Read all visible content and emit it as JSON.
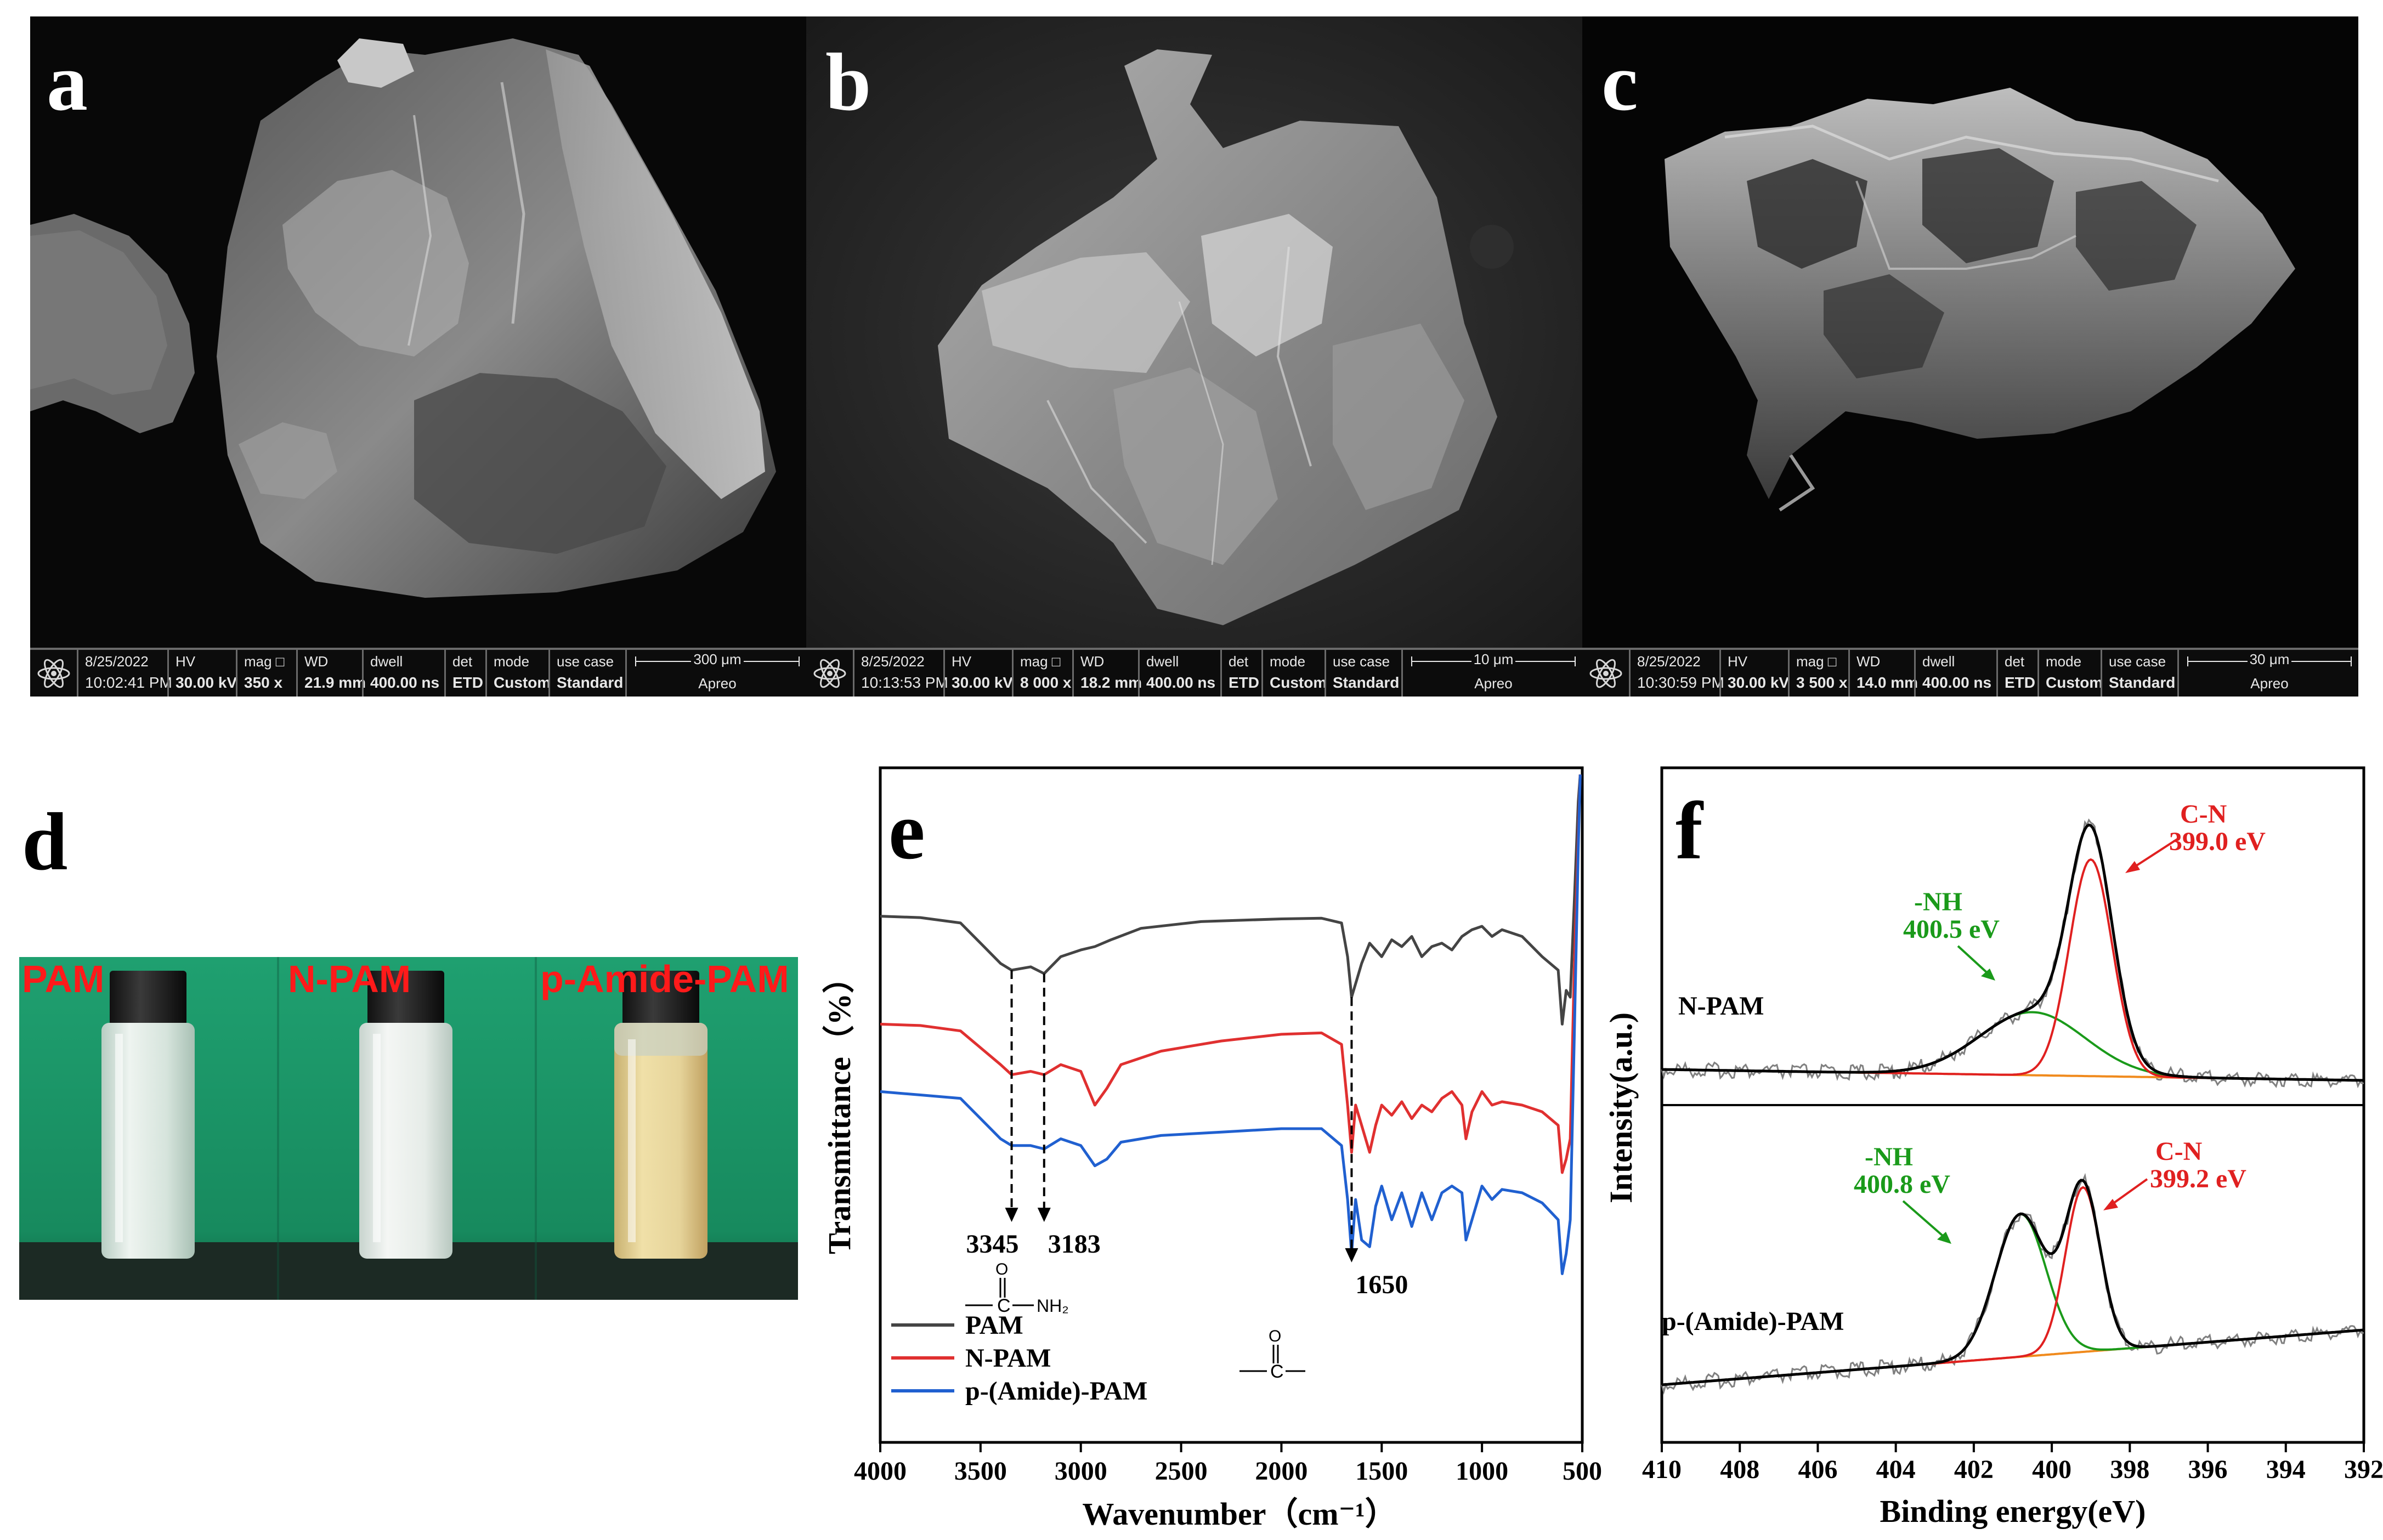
{
  "panels": {
    "a": "a",
    "b": "b",
    "c": "c",
    "d": "d",
    "e": "e",
    "f": "f"
  },
  "sem": [
    {
      "date": "8/25/2022",
      "time": "10:02:41 PM",
      "hv_label": "HV",
      "hv": "30.00 kV",
      "mag_label": "mag □",
      "mag": "350 x",
      "wd_label": "WD",
      "wd": "21.9 mm",
      "dwell_label": "dwell",
      "dwell": "400.00 ns",
      "det_label": "det",
      "det": "ETD",
      "mode_label": "mode",
      "mode": "Custom",
      "usecase_label": "use case",
      "usecase": "Standard",
      "scale": "300 μm",
      "brand": "Apreo"
    },
    {
      "date": "8/25/2022",
      "time": "10:13:53 PM",
      "hv_label": "HV",
      "hv": "30.00 kV",
      "mag_label": "mag □",
      "mag": "8 000 x",
      "wd_label": "WD",
      "wd": "18.2 mm",
      "dwell_label": "dwell",
      "dwell": "400.00 ns",
      "det_label": "det",
      "det": "ETD",
      "mode_label": "mode",
      "mode": "Custom",
      "usecase_label": "use case",
      "usecase": "Standard",
      "scale": "10 μm",
      "brand": "Apreo"
    },
    {
      "date": "8/25/2022",
      "time": "10:30:59 PM",
      "hv_label": "HV",
      "hv": "30.00 kV",
      "mag_label": "mag □",
      "mag": "3 500 x",
      "wd_label": "WD",
      "wd": "14.0 mm",
      "dwell_label": "dwell",
      "dwell": "400.00 ns",
      "det_label": "det",
      "det": "ETD",
      "mode_label": "mode",
      "mode": "Custom",
      "usecase_label": "use case",
      "usecase": "Standard",
      "scale": "30 μm",
      "brand": "Apreo"
    }
  ],
  "vials": {
    "labels": [
      "PAM",
      "N-PAM",
      "p-Amide-PAM"
    ],
    "liquid_colors": [
      "#d8e4dc",
      "#e6ece8",
      "#e6d49a"
    ],
    "background_color": "#1f9e6c",
    "label_color": "#ff1a1a"
  },
  "chart_data": [
    {
      "type": "line",
      "panel": "e",
      "xlabel": "Wavenumber（cm⁻¹）",
      "ylabel": "Transmittance（%）",
      "xlim": [
        4000,
        500
      ],
      "x_ticks": [
        "4000",
        "3500",
        "3000",
        "2500",
        "2000",
        "1500",
        "1000",
        "500"
      ],
      "legend_position": "bottom-left",
      "series": [
        {
          "name": "PAM",
          "color": "#444444",
          "points": [
            [
              4000,
              0.78
            ],
            [
              3800,
              0.778
            ],
            [
              3600,
              0.77
            ],
            [
              3500,
              0.74
            ],
            [
              3400,
              0.71
            ],
            [
              3345,
              0.7
            ],
            [
              3250,
              0.705
            ],
            [
              3183,
              0.695
            ],
            [
              3100,
              0.72
            ],
            [
              3000,
              0.73
            ],
            [
              2930,
              0.735
            ],
            [
              2850,
              0.745
            ],
            [
              2700,
              0.762
            ],
            [
              2400,
              0.772
            ],
            [
              2000,
              0.776
            ],
            [
              1800,
              0.777
            ],
            [
              1700,
              0.77
            ],
            [
              1670,
              0.72
            ],
            [
              1650,
              0.66
            ],
            [
              1620,
              0.69
            ],
            [
              1600,
              0.71
            ],
            [
              1560,
              0.74
            ],
            [
              1500,
              0.72
            ],
            [
              1450,
              0.745
            ],
            [
              1400,
              0.735
            ],
            [
              1350,
              0.75
            ],
            [
              1300,
              0.72
            ],
            [
              1250,
              0.735
            ],
            [
              1200,
              0.74
            ],
            [
              1150,
              0.73
            ],
            [
              1100,
              0.75
            ],
            [
              1050,
              0.76
            ],
            [
              1000,
              0.765
            ],
            [
              950,
              0.75
            ],
            [
              900,
              0.76
            ],
            [
              800,
              0.75
            ],
            [
              700,
              0.72
            ],
            [
              620,
              0.7
            ],
            [
              600,
              0.62
            ],
            [
              580,
              0.67
            ],
            [
              560,
              0.66
            ],
            [
              540,
              0.8
            ],
            [
              520,
              0.95
            ],
            [
              510,
              0.99
            ]
          ]
        },
        {
          "name": "N-PAM",
          "color": "#e03030",
          "points": [
            [
              4000,
              0.62
            ],
            [
              3800,
              0.618
            ],
            [
              3600,
              0.61
            ],
            [
              3500,
              0.585
            ],
            [
              3400,
              0.56
            ],
            [
              3345,
              0.545
            ],
            [
              3250,
              0.55
            ],
            [
              3183,
              0.545
            ],
            [
              3100,
              0.56
            ],
            [
              3000,
              0.55
            ],
            [
              2930,
              0.5
            ],
            [
              2870,
              0.525
            ],
            [
              2800,
              0.56
            ],
            [
              2600,
              0.58
            ],
            [
              2300,
              0.595
            ],
            [
              2000,
              0.605
            ],
            [
              1800,
              0.607
            ],
            [
              1700,
              0.59
            ],
            [
              1670,
              0.5
            ],
            [
              1650,
              0.43
            ],
            [
              1630,
              0.5
            ],
            [
              1600,
              0.47
            ],
            [
              1560,
              0.43
            ],
            [
              1530,
              0.47
            ],
            [
              1500,
              0.5
            ],
            [
              1450,
              0.485
            ],
            [
              1400,
              0.505
            ],
            [
              1350,
              0.48
            ],
            [
              1300,
              0.5
            ],
            [
              1250,
              0.49
            ],
            [
              1200,
              0.51
            ],
            [
              1150,
              0.52
            ],
            [
              1100,
              0.5
            ],
            [
              1080,
              0.45
            ],
            [
              1050,
              0.49
            ],
            [
              1000,
              0.52
            ],
            [
              950,
              0.5
            ],
            [
              900,
              0.505
            ],
            [
              800,
              0.5
            ],
            [
              700,
              0.49
            ],
            [
              620,
              0.47
            ],
            [
              600,
              0.4
            ],
            [
              580,
              0.42
            ],
            [
              560,
              0.45
            ],
            [
              540,
              0.7
            ],
            [
              520,
              0.9
            ],
            [
              510,
              0.99
            ]
          ]
        },
        {
          "name": "p-(Amide)-PAM",
          "color": "#2060d0",
          "points": [
            [
              4000,
              0.52
            ],
            [
              3800,
              0.515
            ],
            [
              3600,
              0.51
            ],
            [
              3500,
              0.48
            ],
            [
              3400,
              0.45
            ],
            [
              3345,
              0.44
            ],
            [
              3250,
              0.44
            ],
            [
              3183,
              0.435
            ],
            [
              3100,
              0.45
            ],
            [
              3000,
              0.44
            ],
            [
              2930,
              0.41
            ],
            [
              2870,
              0.42
            ],
            [
              2800,
              0.445
            ],
            [
              2600,
              0.455
            ],
            [
              2300,
              0.46
            ],
            [
              2000,
              0.465
            ],
            [
              1800,
              0.465
            ],
            [
              1700,
              0.44
            ],
            [
              1670,
              0.36
            ],
            [
              1650,
              0.28
            ],
            [
              1630,
              0.36
            ],
            [
              1600,
              0.3
            ],
            [
              1560,
              0.29
            ],
            [
              1530,
              0.35
            ],
            [
              1500,
              0.38
            ],
            [
              1450,
              0.33
            ],
            [
              1400,
              0.37
            ],
            [
              1350,
              0.32
            ],
            [
              1300,
              0.37
            ],
            [
              1250,
              0.33
            ],
            [
              1200,
              0.37
            ],
            [
              1150,
              0.38
            ],
            [
              1100,
              0.37
            ],
            [
              1080,
              0.3
            ],
            [
              1050,
              0.33
            ],
            [
              1000,
              0.38
            ],
            [
              950,
              0.36
            ],
            [
              900,
              0.375
            ],
            [
              800,
              0.37
            ],
            [
              700,
              0.355
            ],
            [
              620,
              0.33
            ],
            [
              600,
              0.25
            ],
            [
              580,
              0.28
            ],
            [
              560,
              0.33
            ],
            [
              540,
              0.6
            ],
            [
              520,
              0.88
            ],
            [
              510,
              0.99
            ]
          ]
        }
      ],
      "annotations": [
        {
          "text": "3345",
          "x": 3345
        },
        {
          "text": "3183",
          "x": 3183
        },
        {
          "text": "1650",
          "x": 1650
        }
      ],
      "structure_labels": {
        "amine_group": "NH₂",
        "carbon": "C",
        "oxygen": "O"
      }
    },
    {
      "type": "line",
      "panel": "f",
      "xlabel": "Binding energy(eV)",
      "ylabel": "Intensity(a.u.)",
      "xlim": [
        410,
        392
      ],
      "x_ticks": [
        "410",
        "408",
        "406",
        "404",
        "402",
        "400",
        "398",
        "396",
        "394",
        "392"
      ],
      "subplots": [
        {
          "label": "N-PAM",
          "peaks": [
            {
              "label": "-NH",
              "value": "400.5 eV",
              "center": 400.5,
              "color": "#1a9a1a"
            },
            {
              "label": "C-N",
              "value": "399.0 eV",
              "center": 399.0,
              "color": "#e02020"
            }
          ]
        },
        {
          "label": "p-(Amide)-PAM",
          "peaks": [
            {
              "label": "-NH",
              "value": "400.8 eV",
              "center": 400.8,
              "color": "#1a9a1a"
            },
            {
              "label": "C-N",
              "value": "399.2 eV",
              "center": 399.2,
              "color": "#e02020"
            }
          ]
        }
      ],
      "colors": {
        "raw": "#808080",
        "envelope": "#000000",
        "background": "#f08a1c"
      }
    }
  ]
}
